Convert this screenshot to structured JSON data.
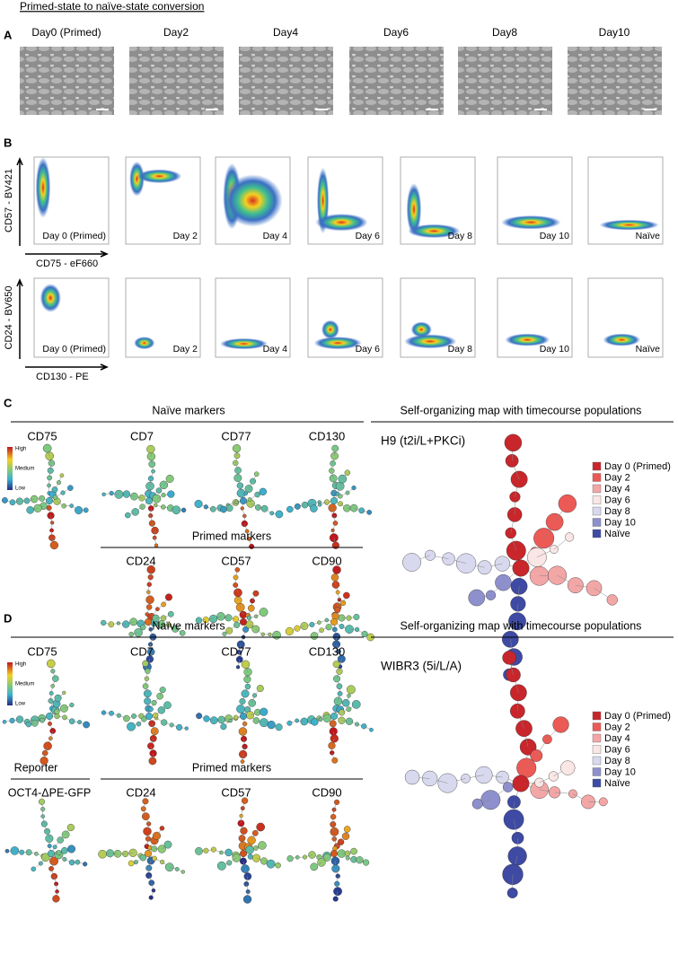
{
  "header": {
    "title": "Primed-state to naïve-state conversion"
  },
  "panel_a": {
    "label": "A",
    "days": [
      "Day0 (Primed)",
      "Day2",
      "Day4",
      "Day6",
      "Day8",
      "Day10"
    ]
  },
  "panel_b": {
    "label": "B",
    "row1": {
      "y_axis": "CD57 - BV421",
      "x_axis": "CD75 - eF660",
      "plots": [
        "Day 0 (Primed)",
        "Day 2",
        "Day 4",
        "Day 6",
        "Day 8",
        "Day 10",
        "Naïve"
      ]
    },
    "row2": {
      "y_axis": "CD24 - BV650",
      "x_axis": "CD130 - PE",
      "plots": [
        "Day 0 (Primed)",
        "Day 2",
        "Day 4",
        "Day 6",
        "Day 8",
        "Day 10",
        "Naïve"
      ]
    }
  },
  "panel_c": {
    "label": "C",
    "naive_title": "Naïve markers",
    "naive_markers": [
      "CD75",
      "CD7",
      "CD77",
      "CD130"
    ],
    "primed_title": "Primed markers",
    "primed_markers": [
      "CD24",
      "CD57",
      "CD90"
    ],
    "scale": [
      "High",
      "Medium",
      "Low"
    ],
    "som_title": "Self-organizing map with timecourse populations",
    "som_subtitle": "H9 (t2i/L+PKCi)",
    "legend": [
      {
        "name": "Day 0 (Primed)",
        "color": "#c8262b"
      },
      {
        "name": "Day 2",
        "color": "#ec5a55"
      },
      {
        "name": "Day 4",
        "color": "#f2a6a6"
      },
      {
        "name": "Day 6",
        "color": "#fbe6e6"
      },
      {
        "name": "Day 8",
        "color": "#d8d9ee"
      },
      {
        "name": "Day 10",
        "color": "#8d90cc"
      },
      {
        "name": "Naïve",
        "color": "#3e4aa3"
      }
    ]
  },
  "panel_d": {
    "label": "D",
    "naive_title": "Naïve markers",
    "naive_markers": [
      "CD75",
      "CD7",
      "CD77",
      "CD130"
    ],
    "reporter_title": "Reporter",
    "reporter_marker": "OCT4-ΔPE-GFP",
    "primed_title": "Primed markers",
    "primed_markers": [
      "CD24",
      "CD57",
      "CD90"
    ],
    "scale": [
      "High",
      "Medium",
      "Low"
    ],
    "som_title": "Self-organizing map with timecourse populations",
    "som_subtitle": "WIBR3 (5i/L/A)",
    "legend": [
      {
        "name": "Day 0 (Primed)",
        "color": "#c8262b"
      },
      {
        "name": "Day 2",
        "color": "#ec5a55"
      },
      {
        "name": "Day 4",
        "color": "#f2a6a6"
      },
      {
        "name": "Day 6",
        "color": "#fbe6e6"
      },
      {
        "name": "Day 8",
        "color": "#d8d9ee"
      },
      {
        "name": "Day 10",
        "color": "#8d90cc"
      },
      {
        "name": "Naïve",
        "color": "#3e4aa3"
      }
    ]
  }
}
